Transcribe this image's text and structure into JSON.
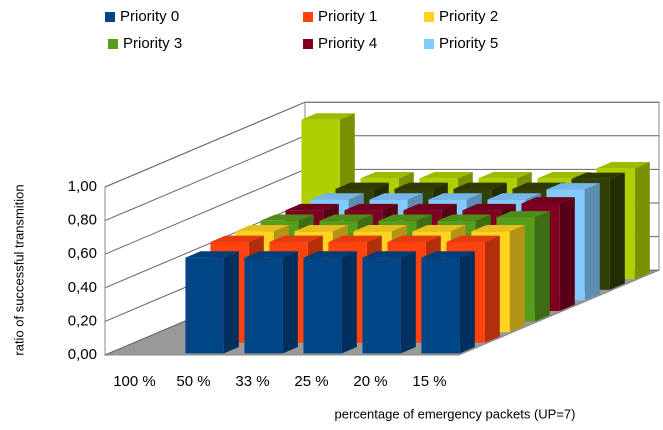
{
  "chart_data": {
    "type": "bar3d",
    "y_label": "ratio of successful transmition",
    "x_label": "percentage of emergency packets (UP=7)",
    "categories": [
      "100 %",
      "50 %",
      "33 %",
      "25 %",
      "20 %",
      "15 %"
    ],
    "series": [
      {
        "name": "Priority 0",
        "color": "#004586",
        "values": [
          0,
          0.57,
          0.57,
          0.57,
          0.57,
          0.57
        ]
      },
      {
        "name": "Priority 1",
        "color": "#ff420e",
        "values": [
          0,
          0.6,
          0.6,
          0.6,
          0.6,
          0.6
        ]
      },
      {
        "name": "Priority 2",
        "color": "#ffd320",
        "values": [
          0,
          0.6,
          0.6,
          0.6,
          0.6,
          0.6
        ]
      },
      {
        "name": "Priority 3",
        "color": "#579d1c",
        "values": [
          0,
          0.6,
          0.6,
          0.6,
          0.6,
          0.62
        ]
      },
      {
        "name": "Priority 4",
        "color": "#7e0021",
        "values": [
          0,
          0.6,
          0.6,
          0.6,
          0.6,
          0.64
        ]
      },
      {
        "name": "Priority 5",
        "color": "#83caff",
        "values": [
          0,
          0.6,
          0.6,
          0.6,
          0.6,
          0.66
        ]
      },
      {
        "color": "#314004",
        "values": [
          0,
          0.6,
          0.6,
          0.6,
          0.6,
          0.66
        ]
      },
      {
        "color": "#aecf00",
        "values": [
          0.95,
          0.6,
          0.6,
          0.6,
          0.6,
          0.66
        ]
      }
    ],
    "ylim": [
      0,
      1
    ],
    "yticks": [
      {
        "value": 0,
        "label": "0,00"
      },
      {
        "value": 0.2,
        "label": "0,20"
      },
      {
        "value": 0.4,
        "label": "0,40"
      },
      {
        "value": 0.6,
        "label": "0,60"
      },
      {
        "value": 0.8,
        "label": "0,80"
      },
      {
        "value": 1,
        "label": "1,00"
      }
    ],
    "grid": true
  }
}
